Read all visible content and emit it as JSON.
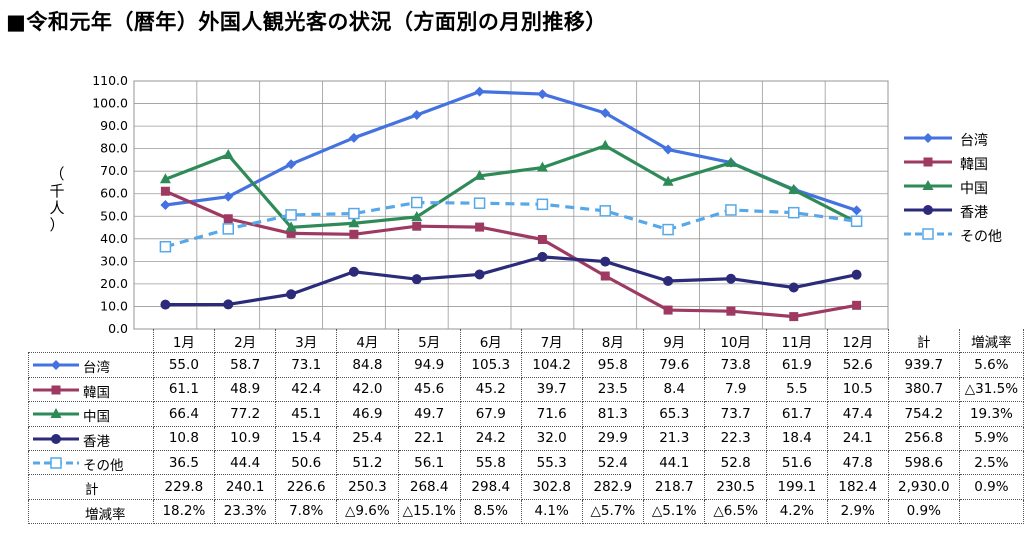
{
  "title": "■令和元年（暦年）外国人観光客の状況（方面別の月別推移）",
  "chart_data": {
    "type": "line",
    "title": "■令和元年（暦年）外国人観光客の状況（方面別の月別推移）",
    "ylabel_chars": [
      "（",
      "千",
      "人",
      "）"
    ],
    "ylim": [
      0,
      110
    ],
    "yticks": [
      "0.0",
      "10.0",
      "20.0",
      "30.0",
      "40.0",
      "50.0",
      "60.0",
      "70.0",
      "80.0",
      "90.0",
      "100.0",
      "110.0"
    ],
    "categories": [
      "1月",
      "2月",
      "3月",
      "4月",
      "5月",
      "6月",
      "7月",
      "8月",
      "9月",
      "10月",
      "11月",
      "12月"
    ],
    "grid": true,
    "legend_position": "right",
    "series": [
      {
        "name": "台湾",
        "color": "#4472e0",
        "marker": "diamond",
        "dash": false,
        "values": [
          55.0,
          58.7,
          73.1,
          84.8,
          94.9,
          105.3,
          104.2,
          95.8,
          79.6,
          73.8,
          61.9,
          52.6
        ]
      },
      {
        "name": "韓国",
        "color": "#9e3a62",
        "marker": "square",
        "dash": false,
        "values": [
          61.1,
          48.9,
          42.4,
          42.0,
          45.6,
          45.2,
          39.7,
          23.5,
          8.4,
          7.9,
          5.5,
          10.5
        ]
      },
      {
        "name": "中国",
        "color": "#2e8b57",
        "marker": "triangle",
        "dash": false,
        "values": [
          66.4,
          77.2,
          45.1,
          46.9,
          49.7,
          67.9,
          71.6,
          81.3,
          65.3,
          73.7,
          61.7,
          47.4
        ]
      },
      {
        "name": "香港",
        "color": "#2b2b7a",
        "marker": "circle",
        "dash": false,
        "values": [
          10.8,
          10.9,
          15.4,
          25.4,
          22.1,
          24.2,
          32.0,
          29.9,
          21.3,
          22.3,
          18.4,
          24.1
        ]
      },
      {
        "name": "その他",
        "color": "#56a8e8",
        "marker": "open-square",
        "dash": true,
        "values": [
          36.5,
          44.4,
          50.6,
          51.2,
          56.1,
          55.8,
          55.3,
          52.4,
          44.1,
          52.8,
          51.6,
          47.8
        ]
      }
    ]
  },
  "table": {
    "header_total": "計",
    "header_change": "増減率",
    "rows": [
      {
        "name": "台湾",
        "values": [
          "55.0",
          "58.7",
          "73.1",
          "84.8",
          "94.9",
          "105.3",
          "104.2",
          "95.8",
          "79.6",
          "73.8",
          "61.9",
          "52.6"
        ],
        "total": "939.7",
        "change": "5.6%"
      },
      {
        "name": "韓国",
        "values": [
          "61.1",
          "48.9",
          "42.4",
          "42.0",
          "45.6",
          "45.2",
          "39.7",
          "23.5",
          "8.4",
          "7.9",
          "5.5",
          "10.5"
        ],
        "total": "380.7",
        "change": "△31.5%"
      },
      {
        "name": "中国",
        "values": [
          "66.4",
          "77.2",
          "45.1",
          "46.9",
          "49.7",
          "67.9",
          "71.6",
          "81.3",
          "65.3",
          "73.7",
          "61.7",
          "47.4"
        ],
        "total": "754.2",
        "change": "19.3%"
      },
      {
        "name": "香港",
        "values": [
          "10.8",
          "10.9",
          "15.4",
          "25.4",
          "22.1",
          "24.2",
          "32.0",
          "29.9",
          "21.3",
          "22.3",
          "18.4",
          "24.1"
        ],
        "total": "256.8",
        "change": "5.9%"
      },
      {
        "name": "その他",
        "values": [
          "36.5",
          "44.4",
          "50.6",
          "51.2",
          "56.1",
          "55.8",
          "55.3",
          "52.4",
          "44.1",
          "52.8",
          "51.6",
          "47.8"
        ],
        "total": "598.6",
        "change": "2.5%"
      },
      {
        "name": "計",
        "values": [
          "229.8",
          "240.1",
          "226.6",
          "250.3",
          "268.4",
          "298.4",
          "302.8",
          "282.9",
          "218.7",
          "230.5",
          "199.1",
          "182.4"
        ],
        "total": "2,930.0",
        "change": "0.9%"
      },
      {
        "name": "増減率",
        "values": [
          "18.2%",
          "23.3%",
          "7.8%",
          "△9.6%",
          "△15.1%",
          "8.5%",
          "4.1%",
          "△5.7%",
          "△5.1%",
          "△6.5%",
          "4.2%",
          "2.9%"
        ],
        "total": "0.9%",
        "change": ""
      }
    ]
  }
}
